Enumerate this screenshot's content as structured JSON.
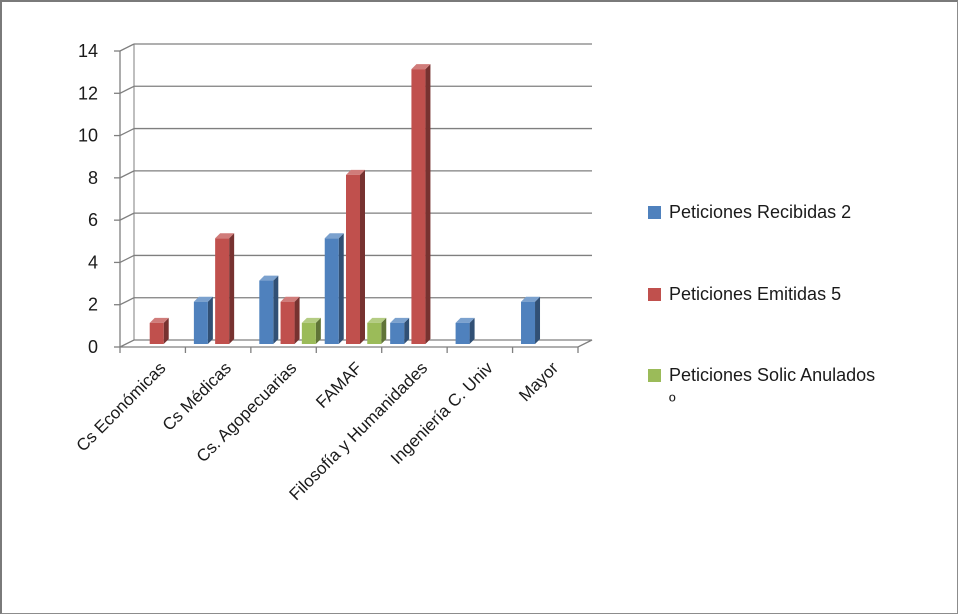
{
  "chart_data": {
    "type": "bar",
    "title": "",
    "xlabel": "",
    "ylabel": "",
    "ylim": [
      0,
      14
    ],
    "yticks": [
      0,
      2,
      4,
      6,
      8,
      10,
      12,
      14
    ],
    "categories": [
      "Cs Económicas",
      "Cs Médicas",
      "Cs. Agopecuarias",
      "FAMAF",
      "Filosofía y Humanidades",
      "Ingeniería C. Univ",
      "Mayor"
    ],
    "series": [
      {
        "name": "Peticiones Recibidas 2",
        "color": "#4f81bd",
        "values": [
          0,
          2,
          3,
          5,
          1,
          1,
          2
        ]
      },
      {
        "name": "Peticiones Emitidas 5",
        "color": "#c0504d",
        "values": [
          1,
          5,
          2,
          8,
          13,
          0,
          0
        ]
      },
      {
        "name": "Peticiones Solic Anulados º",
        "color": "#9bbb59",
        "values": [
          0,
          0,
          1,
          1,
          0,
          0,
          0
        ]
      }
    ],
    "grid": true,
    "legend": "right",
    "style": "3d-clustered-column"
  }
}
